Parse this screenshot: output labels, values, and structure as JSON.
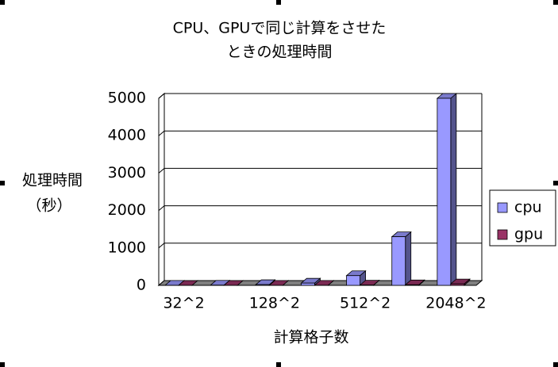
{
  "chart_data": {
    "type": "bar3d",
    "title": [
      "CPU、GPUで同じ計算をさせた",
      "ときの処理時間"
    ],
    "y_label": [
      "処理時間",
      "（秒）"
    ],
    "x_label": "計算格子数",
    "categories": [
      "32^2",
      null,
      "128^2",
      null,
      "512^2",
      null,
      "2048^2"
    ],
    "series": [
      {
        "name": "cpu",
        "color": "#9999ff",
        "values": [
          2,
          5,
          20,
          60,
          260,
          1300,
          5000
        ]
      },
      {
        "name": "gpu",
        "color": "#993366",
        "values": [
          1,
          1,
          2,
          3,
          8,
          15,
          40
        ]
      }
    ],
    "ylim": [
      0,
      5000
    ],
    "yticks": [
      0,
      1000,
      2000,
      3000,
      4000,
      5000
    ],
    "grid": true,
    "legend": "right"
  }
}
